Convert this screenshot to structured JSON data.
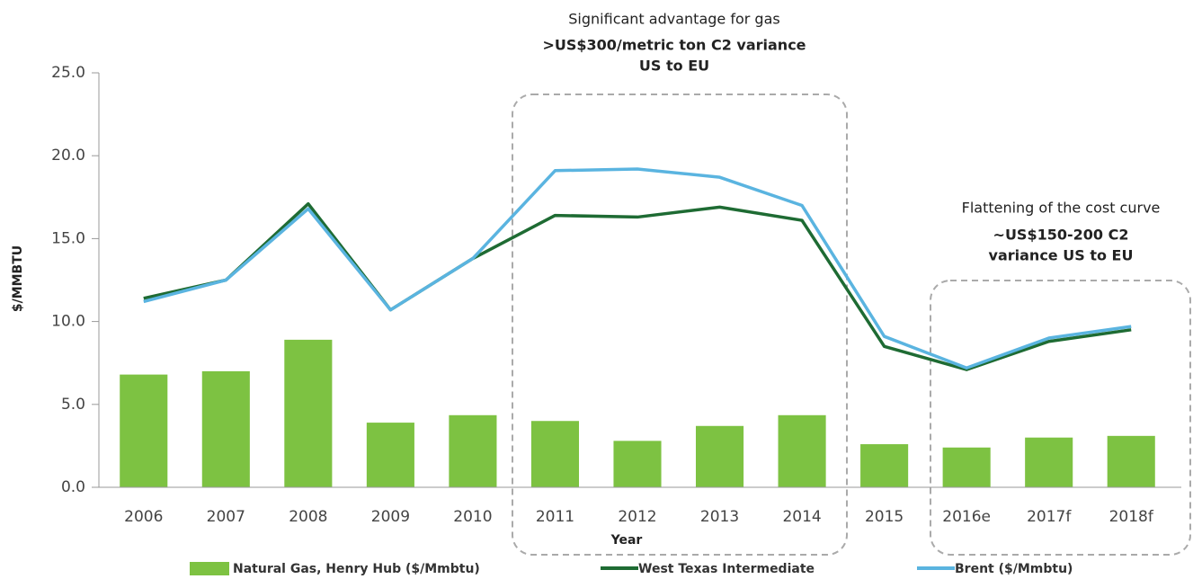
{
  "chart_data": {
    "type": "combo",
    "x_label": "Year",
    "y_label": "$/MMBTU",
    "categories": [
      "2006",
      "2007",
      "2008",
      "2009",
      "2010",
      "2011",
      "2012",
      "2013",
      "2014",
      "2015",
      "2016e",
      "2017f",
      "2018f"
    ],
    "series": [
      {
        "name": "Natural Gas, Henry Hub ($/Mmbtu)",
        "type": "bar",
        "color": "#7dc242",
        "values": [
          6.8,
          7.0,
          8.9,
          3.9,
          4.35,
          4.0,
          2.8,
          3.7,
          4.35,
          2.6,
          2.4,
          3.0,
          3.1
        ]
      },
      {
        "name": "West Texas Intermediate",
        "type": "line",
        "color": "#1e6b33",
        "values": [
          11.4,
          12.5,
          17.1,
          10.7,
          13.8,
          16.4,
          16.3,
          16.9,
          16.1,
          8.5,
          7.1,
          8.8,
          9.5
        ]
      },
      {
        "name": "Brent ($/Mmbtu)",
        "type": "line",
        "color": "#5ab4e0",
        "values": [
          11.2,
          12.5,
          16.8,
          10.7,
          13.8,
          19.1,
          19.2,
          18.7,
          17.0,
          9.1,
          7.2,
          9.0,
          9.7
        ]
      }
    ],
    "ylim": [
      0,
      25
    ],
    "yticks": [
      {
        "value": 0,
        "label": "0.0"
      },
      {
        "value": 5,
        "label": "5.0"
      },
      {
        "value": 10,
        "label": "10.0"
      },
      {
        "value": 15,
        "label": "15.0"
      },
      {
        "value": 20,
        "label": "20.0"
      },
      {
        "value": 25,
        "label": "25.0"
      }
    ],
    "annotations": [
      "Significant advantage for gas",
      ">US$300/metric ton C2 variance",
      "US to EU",
      "Flattening of the cost curve",
      "~US$150-200 C2",
      "variance US to EU"
    ],
    "legend": "bottom"
  }
}
